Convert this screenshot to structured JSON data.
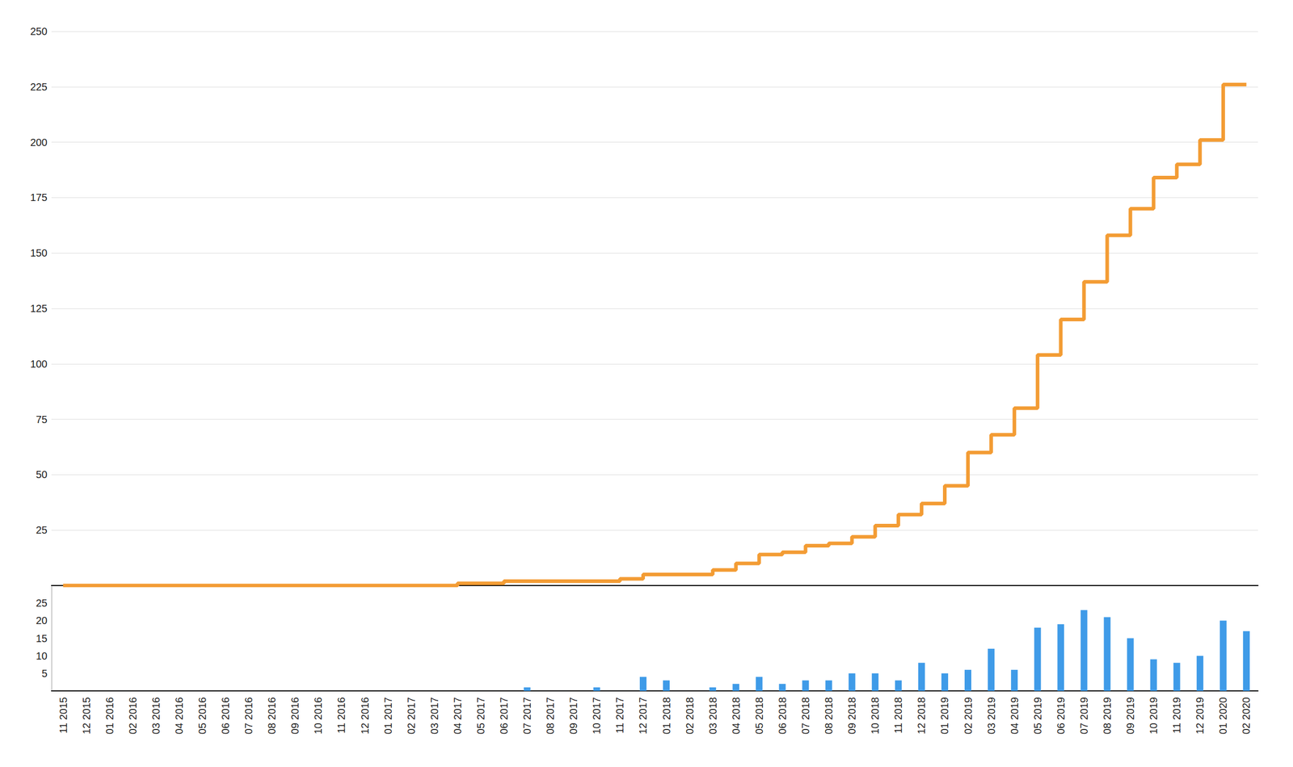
{
  "chart_data": [
    {
      "type": "line",
      "categories": [
        "11 2015",
        "12 2015",
        "01 2016",
        "02 2016",
        "03 2016",
        "04 2016",
        "05 2016",
        "06 2016",
        "07 2016",
        "08 2016",
        "09 2016",
        "10 2016",
        "11 2016",
        "12 2016",
        "01 2017",
        "02 2017",
        "03 2017",
        "04 2017",
        "05 2017",
        "06 2017",
        "07 2017",
        "08 2017",
        "09 2017",
        "10 2017",
        "11 2017",
        "12 2017",
        "01 2018",
        "02 2018",
        "03 2018",
        "04 2018",
        "05 2018",
        "06 2018",
        "07 2018",
        "08 2018",
        "09 2018",
        "10 2018",
        "11 2018",
        "12 2018",
        "01 2019",
        "02 2019",
        "03 2019",
        "04 2019",
        "05 2019",
        "06 2019",
        "07 2019",
        "08 2019",
        "09 2019",
        "10 2019",
        "11 2019",
        "12 2019",
        "01 2020",
        "02 2020"
      ],
      "values": [
        0,
        0,
        0,
        0,
        0,
        0,
        0,
        0,
        0,
        0,
        0,
        0,
        0,
        0,
        0,
        0,
        0,
        0,
        1,
        1,
        2,
        2,
        2,
        2,
        2,
        3,
        5,
        5,
        5,
        7,
        10,
        14,
        15,
        18,
        19,
        22,
        27,
        32,
        37,
        45,
        60,
        68,
        80,
        104,
        120,
        137,
        158,
        170,
        184,
        190,
        201,
        226
      ],
      "color": "#f39c34",
      "line_style": "step",
      "ylim": [
        0,
        250
      ],
      "yticks": [
        25,
        50,
        75,
        100,
        125,
        150,
        175,
        200,
        225,
        250
      ],
      "grid": true,
      "tick_labels": "y"
    },
    {
      "type": "bar",
      "categories": [
        "11 2015",
        "12 2015",
        "01 2016",
        "02 2016",
        "03 2016",
        "04 2016",
        "05 2016",
        "06 2016",
        "07 2016",
        "08 2016",
        "09 2016",
        "10 2016",
        "11 2016",
        "12 2016",
        "01 2017",
        "02 2017",
        "03 2017",
        "04 2017",
        "05 2017",
        "06 2017",
        "07 2017",
        "08 2017",
        "09 2017",
        "10 2017",
        "11 2017",
        "12 2017",
        "01 2018",
        "02 2018",
        "03 2018",
        "04 2018",
        "05 2018",
        "06 2018",
        "07 2018",
        "08 2018",
        "09 2018",
        "10 2018",
        "11 2018",
        "12 2018",
        "01 2019",
        "02 2019",
        "03 2019",
        "04 2019",
        "05 2019",
        "06 2019",
        "07 2019",
        "08 2019",
        "09 2019",
        "10 2019",
        "11 2019",
        "12 2019",
        "01 2020",
        "02 2020"
      ],
      "values": [
        0,
        0,
        0,
        0,
        0,
        0,
        0,
        0,
        0,
        0,
        0,
        0,
        0,
        0,
        0,
        0,
        0,
        0,
        0,
        0,
        1,
        0,
        0,
        1,
        0,
        4,
        3,
        0,
        1,
        2,
        4,
        2,
        3,
        3,
        5,
        5,
        3,
        8,
        5,
        6,
        12,
        6,
        18,
        19,
        23,
        21,
        15,
        9,
        8,
        10,
        20,
        17
      ],
      "color": "#3f9be8",
      "ylim": [
        0,
        30
      ],
      "yticks": [
        5,
        10,
        15,
        20,
        25
      ],
      "grid": false
    }
  ]
}
